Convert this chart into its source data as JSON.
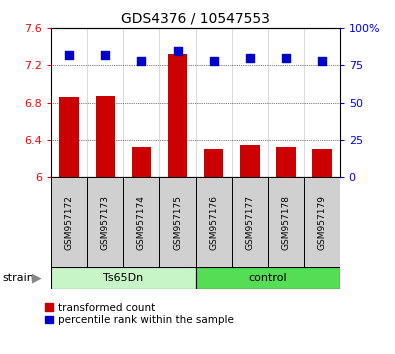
{
  "title": "GDS4376 / 10547553",
  "samples": [
    "GSM957172",
    "GSM957173",
    "GSM957174",
    "GSM957175",
    "GSM957176",
    "GSM957177",
    "GSM957178",
    "GSM957179"
  ],
  "red_values": [
    6.86,
    6.87,
    6.32,
    7.32,
    6.3,
    6.34,
    6.32,
    6.3
  ],
  "blue_values": [
    82,
    82,
    78,
    85,
    78,
    80,
    80,
    78
  ],
  "ylim_left": [
    6.0,
    7.6
  ],
  "ylim_right": [
    0,
    100
  ],
  "yticks_left": [
    6.0,
    6.4,
    6.8,
    7.2,
    7.6
  ],
  "yticks_right": [
    0,
    25,
    50,
    75,
    100
  ],
  "ytick_labels_left": [
    "6",
    "6.4",
    "6.8",
    "7.2",
    "7.6"
  ],
  "ytick_labels_right": [
    "0",
    "25",
    "50",
    "75",
    "100%"
  ],
  "bar_color": "#CC0000",
  "dot_color": "#0000CC",
  "bar_width": 0.55,
  "dot_size": 30,
  "tick_label_size": 8,
  "title_fontsize": 10,
  "sample_box_color": "#d0d0d0",
  "group_colors": [
    "#c8f5c8",
    "#55dd55"
  ],
  "group_labels": [
    "Ts65Dn",
    "control"
  ],
  "group_split": 4,
  "strain_label": "strain",
  "legend_items": [
    "transformed count",
    "percentile rank within the sample"
  ]
}
